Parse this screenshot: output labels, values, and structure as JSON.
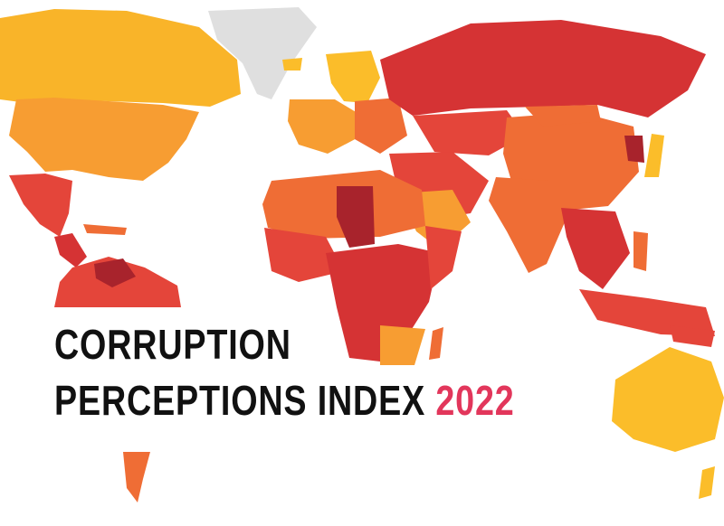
{
  "title": {
    "line1": "CORRUPTION",
    "line2": "PERCEPTIONS INDEX",
    "year": "2022"
  },
  "colors": {
    "title_text": "#111111",
    "year_text": "#e2365b",
    "background": "#ffffff",
    "no_data": "#dfdfdf",
    "scale": [
      "#fbbd2a",
      "#f79d32",
      "#ef6d35",
      "#e4453a",
      "#d53334",
      "#a8232c"
    ]
  },
  "map": {
    "type": "choropleth world map",
    "legend_shown": false
  }
}
